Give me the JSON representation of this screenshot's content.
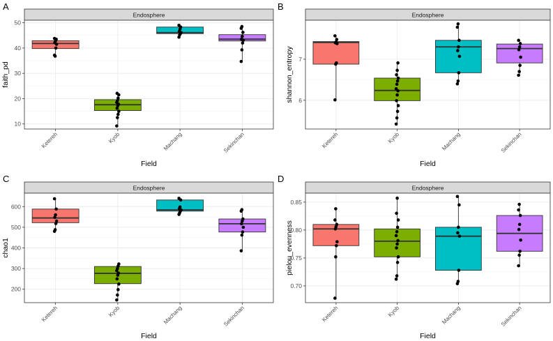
{
  "chart_data": [
    {
      "panel": "A",
      "type": "boxplot",
      "strip": "Endosphere",
      "xlabel": "Field",
      "ylabel": "faith_pd",
      "categories": [
        "Ketereh",
        "Kyob",
        "Machang",
        "Sekinchan"
      ],
      "colors": [
        "#F8766D",
        "#7CAE00",
        "#00BFC4",
        "#C77CFF"
      ],
      "ylim": [
        8,
        51
      ],
      "yticks": [
        "10",
        "20",
        "30",
        "40",
        "50"
      ],
      "ytick_values": [
        10,
        20,
        30,
        40,
        50
      ],
      "boxes": [
        {
          "q1": 39.8,
          "median": 41.8,
          "q3": 42.9,
          "low": 36.8,
          "high": 43.8
        },
        {
          "q1": 15.3,
          "median": 17.6,
          "q3": 19.6,
          "low": 9.2,
          "high": 22.1
        },
        {
          "q1": 45.7,
          "median": 46.1,
          "q3": 48.3,
          "low": 44.3,
          "high": 49.0
        },
        {
          "q1": 42.8,
          "median": 43.5,
          "q3": 45.3,
          "low": 34.7,
          "high": 48.5
        }
      ],
      "points": [
        [
          37.2,
          36.8,
          40.0,
          41.5,
          42.1,
          42.8,
          43.5,
          43.8
        ],
        [
          9.2,
          12.5,
          13.8,
          15.0,
          16.2,
          17.2,
          17.8,
          18.5,
          19.2,
          20.2,
          21.5,
          22.1
        ],
        [
          44.3,
          45.2,
          45.7,
          46.1,
          46.6,
          47.5,
          48.3,
          49.0
        ],
        [
          34.7,
          39.3,
          42.0,
          43.1,
          43.5,
          44.6,
          46.2,
          47.8,
          48.5
        ]
      ]
    },
    {
      "panel": "B",
      "type": "boxplot",
      "strip": "Endosphere",
      "xlabel": "Field",
      "ylabel": "shannon_entropy",
      "categories": [
        "Ketereh",
        "Kyob",
        "Machang",
        "Sekinchan"
      ],
      "colors": [
        "#F8766D",
        "#7CAE00",
        "#00BFC4",
        "#C77CFF"
      ],
      "ylim": [
        5.3,
        7.95
      ],
      "yticks": [
        "6",
        "7"
      ],
      "ytick_values": [
        6,
        7
      ],
      "boxes": [
        {
          "q1": 6.88,
          "median": 7.41,
          "q3": 7.43,
          "low": 6.01,
          "high": 7.57
        },
        {
          "q1": 5.99,
          "median": 6.24,
          "q3": 6.54,
          "low": 5.42,
          "high": 6.91
        },
        {
          "q1": 6.67,
          "median": 7.3,
          "q3": 7.46,
          "low": 6.4,
          "high": 7.86
        },
        {
          "q1": 6.91,
          "median": 7.26,
          "q3": 7.37,
          "low": 6.61,
          "high": 7.46
        }
      ],
      "points": [
        [
          6.01,
          6.88,
          6.91,
          7.38,
          7.4,
          7.42,
          7.48,
          7.57
        ],
        [
          5.42,
          5.57,
          5.73,
          5.87,
          5.99,
          6.13,
          6.23,
          6.28,
          6.39,
          6.47,
          6.54,
          6.62,
          6.73,
          6.91
        ],
        [
          6.4,
          6.47,
          6.67,
          7.07,
          7.21,
          7.3,
          7.46,
          7.78,
          7.86
        ],
        [
          6.61,
          6.7,
          6.85,
          7.05,
          7.23,
          7.3,
          7.38,
          7.46
        ]
      ]
    },
    {
      "panel": "C",
      "type": "boxplot",
      "strip": "Endosphere",
      "xlabel": "Field",
      "ylabel": "chao1",
      "categories": [
        "Ketereh",
        "Kyob",
        "Machang",
        "Sekinchan"
      ],
      "colors": [
        "#F8766D",
        "#7CAE00",
        "#00BFC4",
        "#C77CFF"
      ],
      "ylim": [
        135,
        665
      ],
      "yticks": [
        "200",
        "300",
        "400",
        "500",
        "600"
      ],
      "ytick_values": [
        200,
        300,
        400,
        500,
        600
      ],
      "boxes": [
        {
          "q1": 522,
          "median": 545,
          "q3": 588,
          "low": 480,
          "high": 638
        },
        {
          "q1": 227,
          "median": 277,
          "q3": 310,
          "low": 148,
          "high": 322
        },
        {
          "q1": 578,
          "median": 584,
          "q3": 632,
          "low": 562,
          "high": 640
        },
        {
          "q1": 477,
          "median": 517,
          "q3": 540,
          "low": 386,
          "high": 585
        }
      ],
      "points": [
        [
          480,
          488,
          518,
          530,
          548,
          560,
          588,
          638
        ],
        [
          148,
          172,
          198,
          225,
          250,
          268,
          278,
          290,
          300,
          312,
          322
        ],
        [
          562,
          570,
          578,
          584,
          590,
          598,
          632,
          640
        ],
        [
          386,
          462,
          477,
          500,
          517,
          530,
          540,
          578,
          585
        ]
      ]
    },
    {
      "panel": "D",
      "type": "boxplot",
      "strip": "Endosphere",
      "xlabel": "Field",
      "ylabel": "pielou_evenness",
      "categories": [
        "Ketereh",
        "Kyob",
        "Machang",
        "Sekinchan"
      ],
      "colors": [
        "#F8766D",
        "#7CAE00",
        "#00BFC4",
        "#C77CFF"
      ],
      "ylim": [
        0.67,
        0.866
      ],
      "yticks": [
        "0.70",
        "0.75",
        "0.80",
        "0.85"
      ],
      "ytick_values": [
        0.7,
        0.75,
        0.8,
        0.85
      ],
      "boxes": [
        {
          "q1": 0.772,
          "median": 0.802,
          "q3": 0.81,
          "low": 0.678,
          "high": 0.838
        },
        {
          "q1": 0.752,
          "median": 0.78,
          "q3": 0.802,
          "low": 0.712,
          "high": 0.857
        },
        {
          "q1": 0.728,
          "median": 0.789,
          "q3": 0.805,
          "low": 0.704,
          "high": 0.86
        },
        {
          "q1": 0.762,
          "median": 0.794,
          "q3": 0.826,
          "low": 0.736,
          "high": 0.846
        }
      ],
      "points": [
        [
          0.678,
          0.752,
          0.772,
          0.779,
          0.802,
          0.806,
          0.81,
          0.818,
          0.838
        ],
        [
          0.712,
          0.718,
          0.742,
          0.752,
          0.768,
          0.775,
          0.781,
          0.79,
          0.797,
          0.805,
          0.818,
          0.83,
          0.857
        ],
        [
          0.704,
          0.708,
          0.728,
          0.789,
          0.795,
          0.805,
          0.845,
          0.86
        ],
        [
          0.736,
          0.755,
          0.762,
          0.782,
          0.801,
          0.81,
          0.826,
          0.836,
          0.846
        ]
      ]
    }
  ]
}
